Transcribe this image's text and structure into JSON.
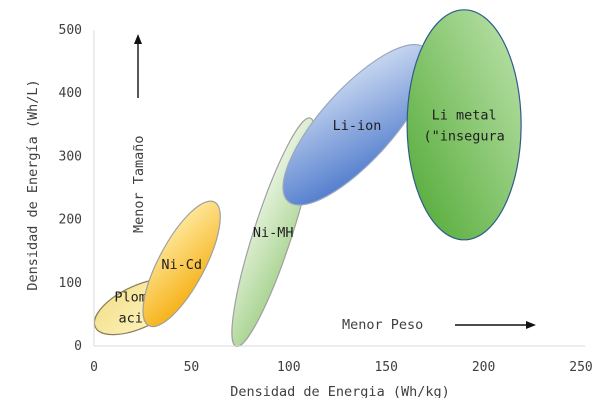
{
  "chart_data": {
    "type": "scatter",
    "title": "",
    "xlabel": "Densidad  de Energia (Wh/kg)",
    "ylabel": "Densidad de Energía (Wh/L)",
    "xlim": [
      0,
      250
    ],
    "ylim": [
      0,
      500
    ],
    "xticks": [
      "0",
      "50",
      "100",
      "150",
      "200",
      "250"
    ],
    "yticks": [
      "0",
      "100",
      "200",
      "300",
      "400",
      "500"
    ],
    "grid": false,
    "regions": [
      {
        "lines": [
          "Plomo-",
          "acido"
        ],
        "cx": 23,
        "cy": 62,
        "rx": 21,
        "ry": 48,
        "angle": 65,
        "fill_light": "#fff6c8",
        "fill_dark": "#f3e08a",
        "stroke": "#8a7f5a"
      },
      {
        "lines": [
          "Ni-Cd"
        ],
        "cx": 45,
        "cy": 130,
        "rx": 70,
        "ry": 23,
        "angle": -62,
        "fill_light": "#fff0b0",
        "fill_dark": "#f5a800",
        "stroke": "#a0a0a0"
      },
      {
        "lines": [
          "Ni-MH"
        ],
        "cx": 92,
        "cy": 180,
        "rx": 120,
        "ry": 19,
        "angle": -72,
        "fill_light": "#f1f8eb",
        "fill_dark": "#9fcf85",
        "stroke": "#a0a0a0"
      },
      {
        "lines": [
          "Li-ion"
        ],
        "cx": 135,
        "cy": 350,
        "rx": 103,
        "ry": 36,
        "angle": -48,
        "fill_light": "#dde7f7",
        "fill_dark": "#3e6ec7",
        "stroke": "#9aa8c0"
      },
      {
        "lines": [
          "Li metal",
          "(\"insegura"
        ],
        "cx": 190,
        "cy": 350,
        "rx": 57,
        "ry": 115,
        "angle": 0,
        "fill_light": "#bfe4ae",
        "fill_dark": "#4fa832",
        "stroke": "#2e5c8a"
      }
    ],
    "annotations": {
      "size": "Menor Tamaño",
      "weight": "Menor Peso"
    }
  }
}
